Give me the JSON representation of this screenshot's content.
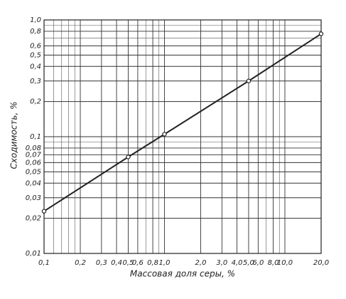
{
  "chart_data": {
    "type": "line",
    "x_label": "Массовая доля серы, %",
    "y_label": "Сходимость, %",
    "xscale": "log",
    "yscale": "log",
    "grid": true,
    "xlim": [
      0.1,
      20
    ],
    "ylim": [
      0.01,
      1
    ],
    "xticks": [
      {
        "value": 0.1,
        "label": "0,1"
      },
      {
        "value": 0.2,
        "label": "0,2"
      },
      {
        "value": 0.3,
        "label": "0,3"
      },
      {
        "value": 0.4,
        "label": "0,4"
      },
      {
        "value": 0.5,
        "label": "0,5"
      },
      {
        "value": 0.6,
        "label": "0,6"
      },
      {
        "value": 0.8,
        "label": "0,8"
      },
      {
        "value": 1,
        "label": "1,0"
      },
      {
        "value": 2,
        "label": "2,0"
      },
      {
        "value": 3,
        "label": "3,0"
      },
      {
        "value": 4,
        "label": "4,0"
      },
      {
        "value": 5,
        "label": "5,0"
      },
      {
        "value": 6,
        "label": "6,0"
      },
      {
        "value": 8,
        "label": "8,0"
      },
      {
        "value": 10,
        "label": "10,0"
      },
      {
        "value": 20,
        "label": "20,0"
      }
    ],
    "yticks": [
      {
        "value": 0.01,
        "label": "0,01"
      },
      {
        "value": 0.02,
        "label": "0,02"
      },
      {
        "value": 0.03,
        "label": "0,03"
      },
      {
        "value": 0.04,
        "label": "0,04"
      },
      {
        "value": 0.05,
        "label": "0,05"
      },
      {
        "value": 0.06,
        "label": "0,06"
      },
      {
        "value": 0.07,
        "label": "0,07"
      },
      {
        "value": 0.08,
        "label": "0,08"
      },
      {
        "value": 0.1,
        "label": "0,1"
      },
      {
        "value": 0.2,
        "label": "0,2"
      },
      {
        "value": 0.3,
        "label": "0,3"
      },
      {
        "value": 0.4,
        "label": "0,4"
      },
      {
        "value": 0.5,
        "label": "0,5"
      },
      {
        "value": 0.6,
        "label": "0,6"
      },
      {
        "value": 0.8,
        "label": "0,8"
      },
      {
        "value": 1,
        "label": "1,0"
      }
    ],
    "xminor": [
      0.12,
      0.14,
      0.16,
      0.18,
      0.7,
      0.9,
      7,
      9
    ],
    "yminor": [
      0.09,
      0.7,
      0.9
    ],
    "series": [
      {
        "color": "#222222",
        "x": [
          0.1,
          0.5,
          1,
          5,
          20
        ],
        "values": [
          0.023,
          0.067,
          0.105,
          0.3,
          0.76
        ]
      }
    ]
  }
}
